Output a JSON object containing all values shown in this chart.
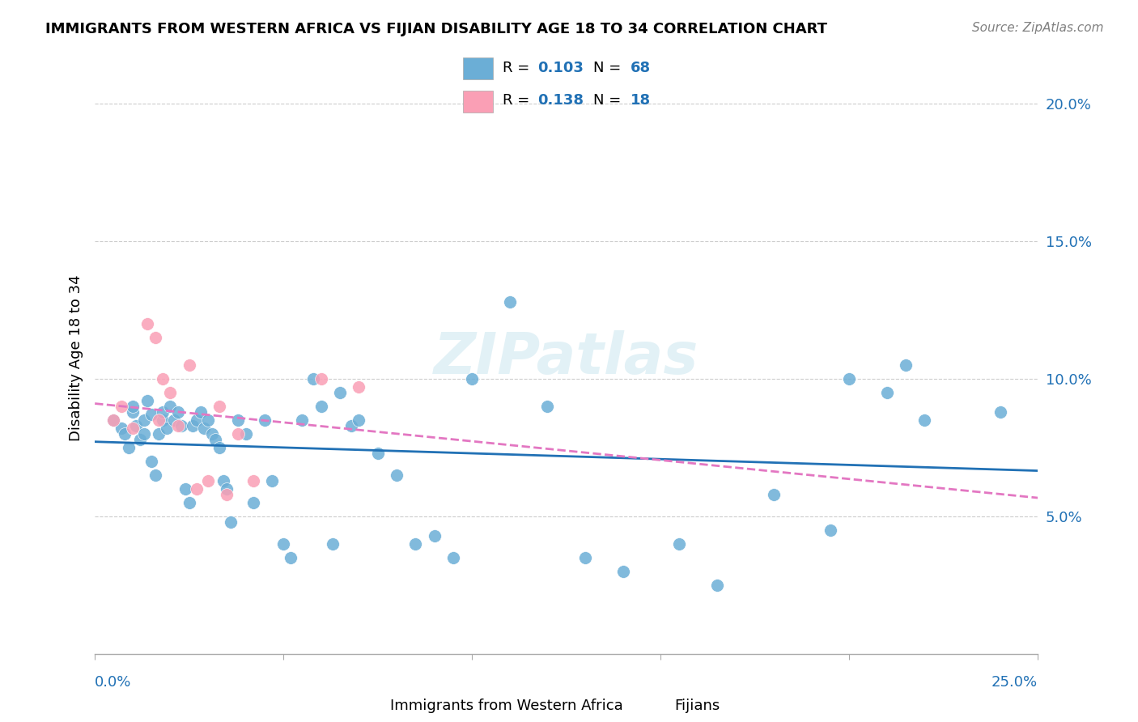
{
  "title": "IMMIGRANTS FROM WESTERN AFRICA VS FIJIAN DISABILITY AGE 18 TO 34 CORRELATION CHART",
  "source": "Source: ZipAtlas.com",
  "ylabel": "Disability Age 18 to 34",
  "xlim": [
    0.0,
    0.25
  ],
  "ylim": [
    0.0,
    0.215
  ],
  "blue_R": 0.103,
  "blue_N": 68,
  "pink_R": 0.138,
  "pink_N": 18,
  "blue_color": "#6baed6",
  "pink_color": "#fa9fb5",
  "blue_line_color": "#2171b5",
  "pink_line_color": "#e377c2",
  "watermark": "ZIPatlas",
  "blue_points_x": [
    0.005,
    0.007,
    0.008,
    0.009,
    0.01,
    0.01,
    0.011,
    0.012,
    0.013,
    0.013,
    0.014,
    0.015,
    0.015,
    0.016,
    0.017,
    0.018,
    0.018,
    0.019,
    0.02,
    0.021,
    0.022,
    0.023,
    0.024,
    0.025,
    0.026,
    0.027,
    0.028,
    0.029,
    0.03,
    0.031,
    0.032,
    0.033,
    0.034,
    0.035,
    0.036,
    0.038,
    0.04,
    0.042,
    0.045,
    0.047,
    0.05,
    0.052,
    0.055,
    0.058,
    0.06,
    0.063,
    0.065,
    0.068,
    0.07,
    0.075,
    0.08,
    0.085,
    0.09,
    0.095,
    0.1,
    0.11,
    0.12,
    0.13,
    0.14,
    0.155,
    0.165,
    0.18,
    0.195,
    0.2,
    0.21,
    0.215,
    0.22,
    0.24
  ],
  "blue_points_y": [
    0.085,
    0.082,
    0.08,
    0.075,
    0.088,
    0.09,
    0.083,
    0.078,
    0.085,
    0.08,
    0.092,
    0.087,
    0.07,
    0.065,
    0.08,
    0.085,
    0.088,
    0.082,
    0.09,
    0.085,
    0.088,
    0.083,
    0.06,
    0.055,
    0.083,
    0.085,
    0.088,
    0.082,
    0.085,
    0.08,
    0.078,
    0.075,
    0.063,
    0.06,
    0.048,
    0.085,
    0.08,
    0.055,
    0.085,
    0.063,
    0.04,
    0.035,
    0.085,
    0.1,
    0.09,
    0.04,
    0.095,
    0.083,
    0.085,
    0.073,
    0.065,
    0.04,
    0.043,
    0.035,
    0.1,
    0.128,
    0.09,
    0.035,
    0.03,
    0.04,
    0.025,
    0.058,
    0.045,
    0.1,
    0.095,
    0.105,
    0.085,
    0.088
  ],
  "pink_points_x": [
    0.005,
    0.007,
    0.01,
    0.014,
    0.016,
    0.017,
    0.018,
    0.02,
    0.022,
    0.025,
    0.027,
    0.03,
    0.033,
    0.035,
    0.038,
    0.042,
    0.06,
    0.07
  ],
  "pink_points_y": [
    0.085,
    0.09,
    0.082,
    0.12,
    0.115,
    0.085,
    0.1,
    0.095,
    0.083,
    0.105,
    0.06,
    0.063,
    0.09,
    0.058,
    0.08,
    0.063,
    0.1,
    0.097
  ]
}
